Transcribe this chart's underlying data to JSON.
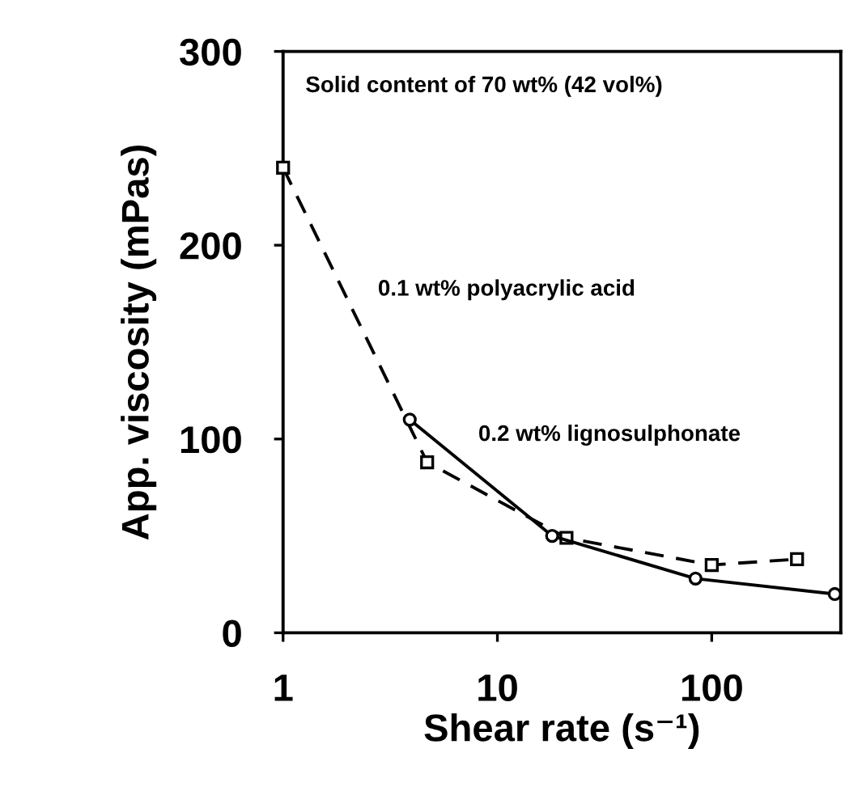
{
  "chart_data": {
    "type": "line",
    "xlabel": "Shear rate (s⁻¹)",
    "ylabel": "App. viscosity (mPas)",
    "log": "x",
    "xlim": [
      1,
      400
    ],
    "xticks": [
      1,
      10,
      100
    ],
    "ylim": [
      0,
      300
    ],
    "yticks": [
      0,
      100,
      200,
      300
    ],
    "grid": false,
    "series": [
      {
        "color": "#000000",
        "line_style": "dashed",
        "marker": "square",
        "x": [
          1,
          4.7,
          21,
          100,
          250
        ],
        "values": [
          240,
          88,
          49,
          35,
          38
        ]
      },
      {
        "color": "#000000",
        "line_style": "solid",
        "marker": "circle",
        "x": [
          3.9,
          18,
          84,
          375
        ],
        "values": [
          110,
          50,
          28,
          20
        ]
      }
    ],
    "annotations": [
      "Solid content of 70 wt% (42 vol%)",
      "0.1 wt% polyacrylic acid",
      "0.2 wt% lignosulphonate"
    ]
  }
}
